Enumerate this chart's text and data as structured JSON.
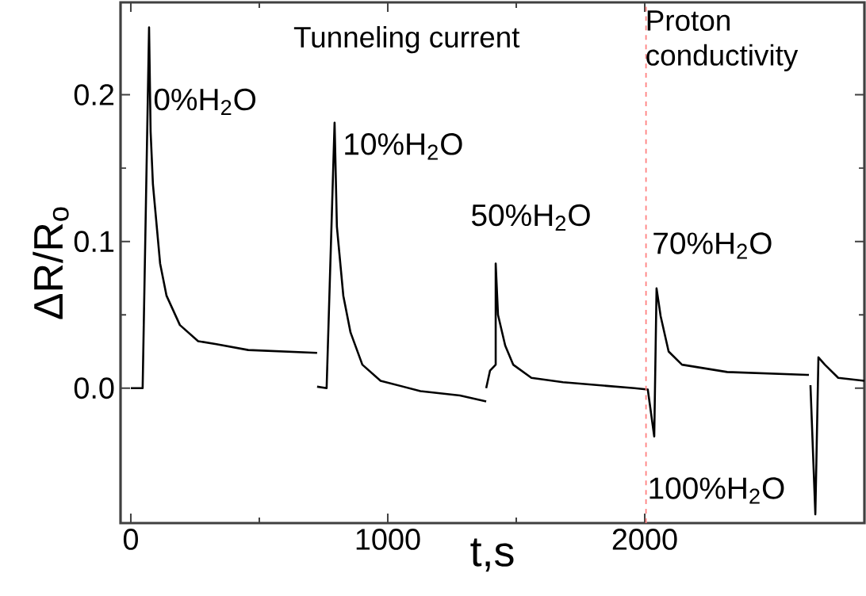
{
  "chart_data": {
    "type": "line",
    "xlabel": "t,s",
    "ylabel": "ΔR/R$_{o}$",
    "xlim": [
      -40,
      2855
    ],
    "ylim": [
      -0.092,
      0.263
    ],
    "xticks": [
      0,
      1000,
      2000
    ],
    "yticks": [
      {
        "value": 0,
        "label": "0.0"
      },
      {
        "value": 0.1,
        "label": "0.1"
      },
      {
        "value": 0.2,
        "label": "0.2"
      }
    ],
    "marker": "none",
    "line_style": "solid",
    "x": [
      0,
      46,
      71,
      77,
      86,
      114,
      139,
      191,
      262,
      333,
      457,
      725,
      null,
      725,
      762,
      793,
      802,
      827,
      855,
      901,
      972,
      1127,
      1281,
      1383,
      null,
      1383,
      1398,
      1420,
      1420,
      1429,
      1457,
      1488,
      1559,
      1682,
      1960,
      2012,
      2037,
      2046,
      2062,
      2093,
      2145,
      2321,
      2639,
      null,
      2645,
      2664,
      2676,
      2701,
      2753,
      2855
    ],
    "series": [
      {
        "color": "#000000",
        "values": [
          0,
          0,
          0.246,
          0.175,
          0.139,
          0.085,
          0.063,
          0.043,
          0.032,
          0.03,
          0.026,
          0.024,
          null,
          0.001,
          0,
          0.181,
          0.11,
          0.063,
          0.038,
          0.016,
          0.005,
          -0.002,
          -0.005,
          -0.009,
          null,
          0,
          0.012,
          0.016,
          0.085,
          0.05,
          0.029,
          0.016,
          0.007,
          0.004,
          0,
          -0.001,
          -0.033,
          0.068,
          0.049,
          0.025,
          0.016,
          0.011,
          0.009,
          null,
          0.002,
          -0.086,
          0.021,
          0.016,
          0.007,
          0.005
        ]
      }
    ],
    "ref_lines": [
      {
        "axis": "x",
        "value": 2005,
        "color": "#ff8080",
        "line_style": "dashed"
      }
    ],
    "annotations": [
      "Tunneling current",
      "Proton conductivity",
      {
        "text": "0%H$_{2}$O",
        "x": 71,
        "y": 0.246
      },
      {
        "text": "10%H$_{2}$O",
        "x": 793,
        "y": 0.181
      },
      {
        "text": "50%H$_{2}$O",
        "x": 1420,
        "y": 0.085
      },
      {
        "text": "70%H$_{2}$O",
        "x": 2046,
        "y": 0.068
      },
      {
        "text": "100%H$_{2}$O",
        "x": 2664,
        "y": -0.086
      }
    ]
  }
}
